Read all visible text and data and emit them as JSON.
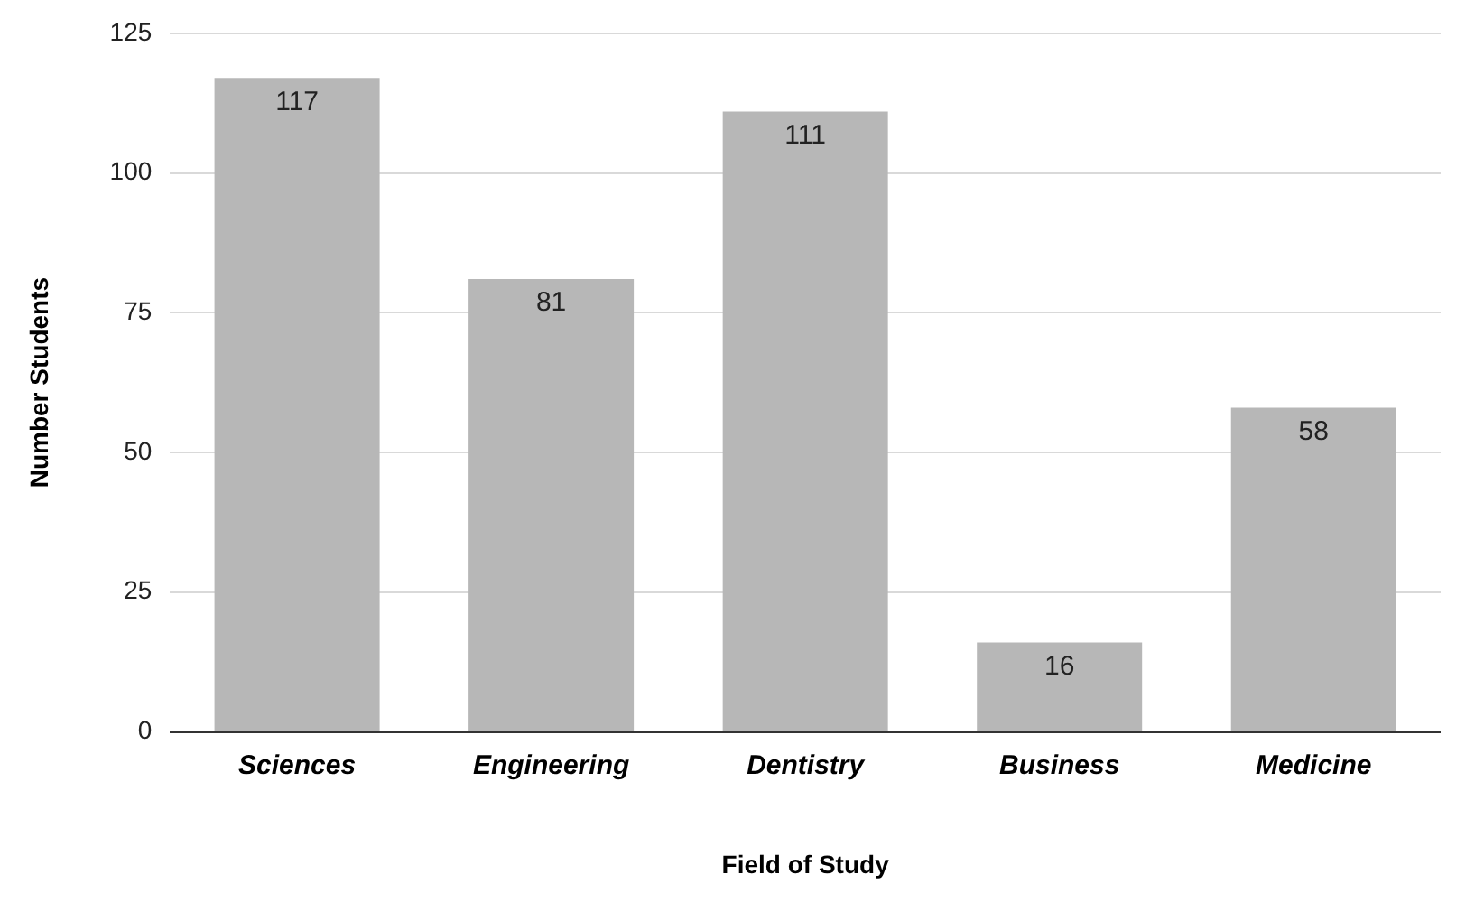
{
  "chart_data": {
    "type": "bar",
    "xlabel": "Field of Study",
    "ylabel": "Number Students",
    "categories": [
      "Sciences",
      "Engineering",
      "Dentistry",
      "Business",
      "Medicine"
    ],
    "values": [
      117,
      81,
      111,
      16,
      58
    ],
    "color": "#b7b7b7",
    "ylim": [
      0,
      125
    ],
    "yticks": [
      0,
      25,
      50,
      75,
      100,
      125
    ],
    "grid": "y",
    "data_labels": true,
    "legend": false
  }
}
